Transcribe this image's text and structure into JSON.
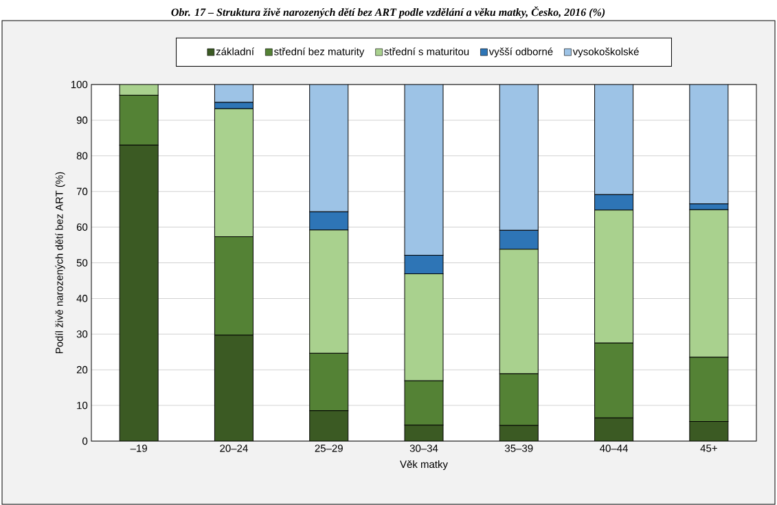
{
  "chart_data": {
    "type": "bar",
    "stacked": true,
    "title": "Obr. 17 – Struktura živě narozených dětí bez ART podle vzdělání a věku matky, Česko, 2016 (%)",
    "xlabel": "Věk matky",
    "ylabel": "Podíl živě narozených dětí bez ART (%)",
    "categories": [
      "–19",
      "20–24",
      "25–29",
      "30–34",
      "35–39",
      "40–44",
      "45+"
    ],
    "series": [
      {
        "name": "základní",
        "color": "#3b5a23",
        "values": [
          83,
          29.7,
          8.5,
          4.5,
          4.4,
          6.5,
          5.5
        ]
      },
      {
        "name": "střední bez maturity",
        "color": "#548235",
        "values": [
          14,
          27.6,
          16.1,
          12.4,
          14.5,
          21,
          18
        ]
      },
      {
        "name": "střední s maturitou",
        "color": "#a9d18e",
        "values": [
          3,
          35.9,
          34.6,
          30,
          34.9,
          37.3,
          41.4
        ]
      },
      {
        "name": "vyšší odborné",
        "color": "#2e75b6",
        "values": [
          0,
          1.8,
          5.1,
          5.2,
          5.3,
          4.3,
          1.6
        ]
      },
      {
        "name": "vysokoškolské",
        "color": "#9dc3e6",
        "values": [
          0,
          5,
          35.7,
          47.9,
          40.9,
          30.9,
          33.5
        ]
      }
    ],
    "ylim": [
      0,
      100
    ],
    "yticks": [
      0,
      10,
      20,
      30,
      40,
      50,
      60,
      70,
      80,
      90,
      100
    ],
    "grid": "y",
    "legend": "top"
  }
}
